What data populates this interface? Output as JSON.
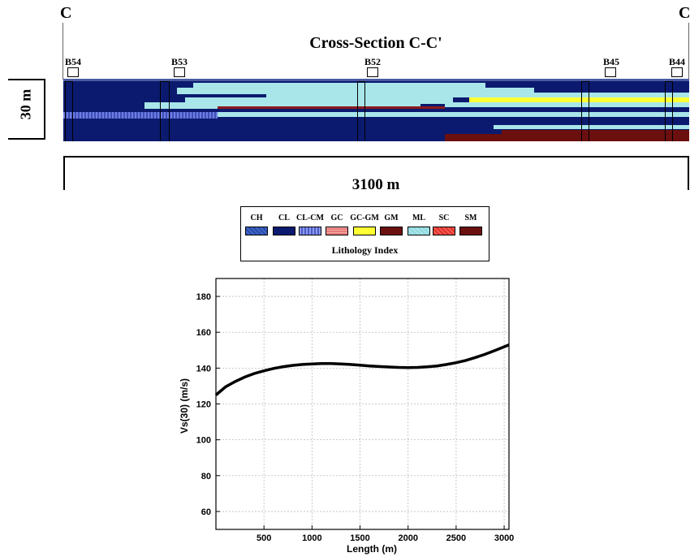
{
  "section": {
    "start_label": "C",
    "end_label": "C",
    "title": "Cross-Section C-C'",
    "depth_label": "30 m",
    "length_label": "3100 m",
    "boreholes": [
      "B54",
      "B53",
      "B52",
      "B45",
      "B44"
    ]
  },
  "legend": {
    "title": "Lithology Index",
    "items": [
      {
        "code": "CH",
        "color": "#2a4aa8"
      },
      {
        "code": "CL",
        "color": "#0b1a6e"
      },
      {
        "code": "CL-CM",
        "color": "#6e7de0"
      },
      {
        "code": "GC",
        "color": "#e87a7a"
      },
      {
        "code": "GC-GM",
        "color": "#ffff33"
      },
      {
        "code": "GM",
        "color": "#6b0f0f"
      },
      {
        "code": "ML",
        "color": "#a8e6ea"
      },
      {
        "code": "SC",
        "color": "#e0302a"
      },
      {
        "code": "SM",
        "color": "#6b0f0f"
      }
    ]
  },
  "chart_data": {
    "type": "line",
    "title": "",
    "xlabel": "Length (m)",
    "ylabel": "Vs(30) (m/s)",
    "xlim": [
      0,
      3050
    ],
    "ylim": [
      50,
      190
    ],
    "xticks": [
      500,
      1000,
      1500,
      2000,
      2500,
      3000
    ],
    "yticks": [
      60,
      80,
      100,
      120,
      140,
      160,
      180
    ],
    "grid": true,
    "series": [
      {
        "color": "#000000",
        "x": [
          0,
          100,
          200,
          300,
          400,
          500,
          600,
          700,
          800,
          900,
          1000,
          1100,
          1200,
          1300,
          1400,
          1500,
          1600,
          1700,
          1800,
          1900,
          2000,
          2100,
          2200,
          2300,
          2400,
          2500,
          2600,
          2700,
          2800,
          2900,
          3050
        ],
        "y": [
          125,
          129.5,
          132.5,
          135,
          137,
          138.5,
          139.8,
          140.8,
          141.5,
          142,
          142.3,
          142.5,
          142.5,
          142.3,
          142,
          141.6,
          141.2,
          140.9,
          140.6,
          140.4,
          140.3,
          140.4,
          140.7,
          141.2,
          142,
          143,
          144.3,
          145.9,
          147.7,
          149.7,
          153
        ]
      }
    ]
  }
}
